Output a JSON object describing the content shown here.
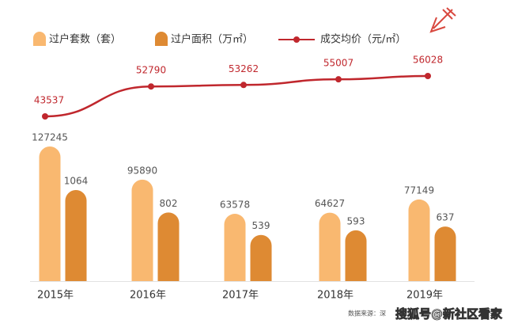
{
  "chart_data": {
    "type": "combo",
    "categories": [
      "2015年",
      "2016年",
      "2017年",
      "2018年",
      "2019年"
    ],
    "series": [
      {
        "name": "过户套数（套）",
        "type": "bar",
        "color": "#f9b870",
        "values": [
          127245,
          95890,
          63578,
          64627,
          77149
        ]
      },
      {
        "name": "过户面积（万㎡）",
        "type": "bar",
        "color": "#de8a33",
        "values": [
          1064,
          802,
          539,
          593,
          637
        ]
      },
      {
        "name": "成交均价（元/㎡）",
        "type": "line",
        "color": "#c0272d",
        "values": [
          43537,
          52790,
          53262,
          55007,
          56028
        ]
      }
    ],
    "source": "数据来源：深",
    "watermark": "搜狐号@新社区看家"
  }
}
